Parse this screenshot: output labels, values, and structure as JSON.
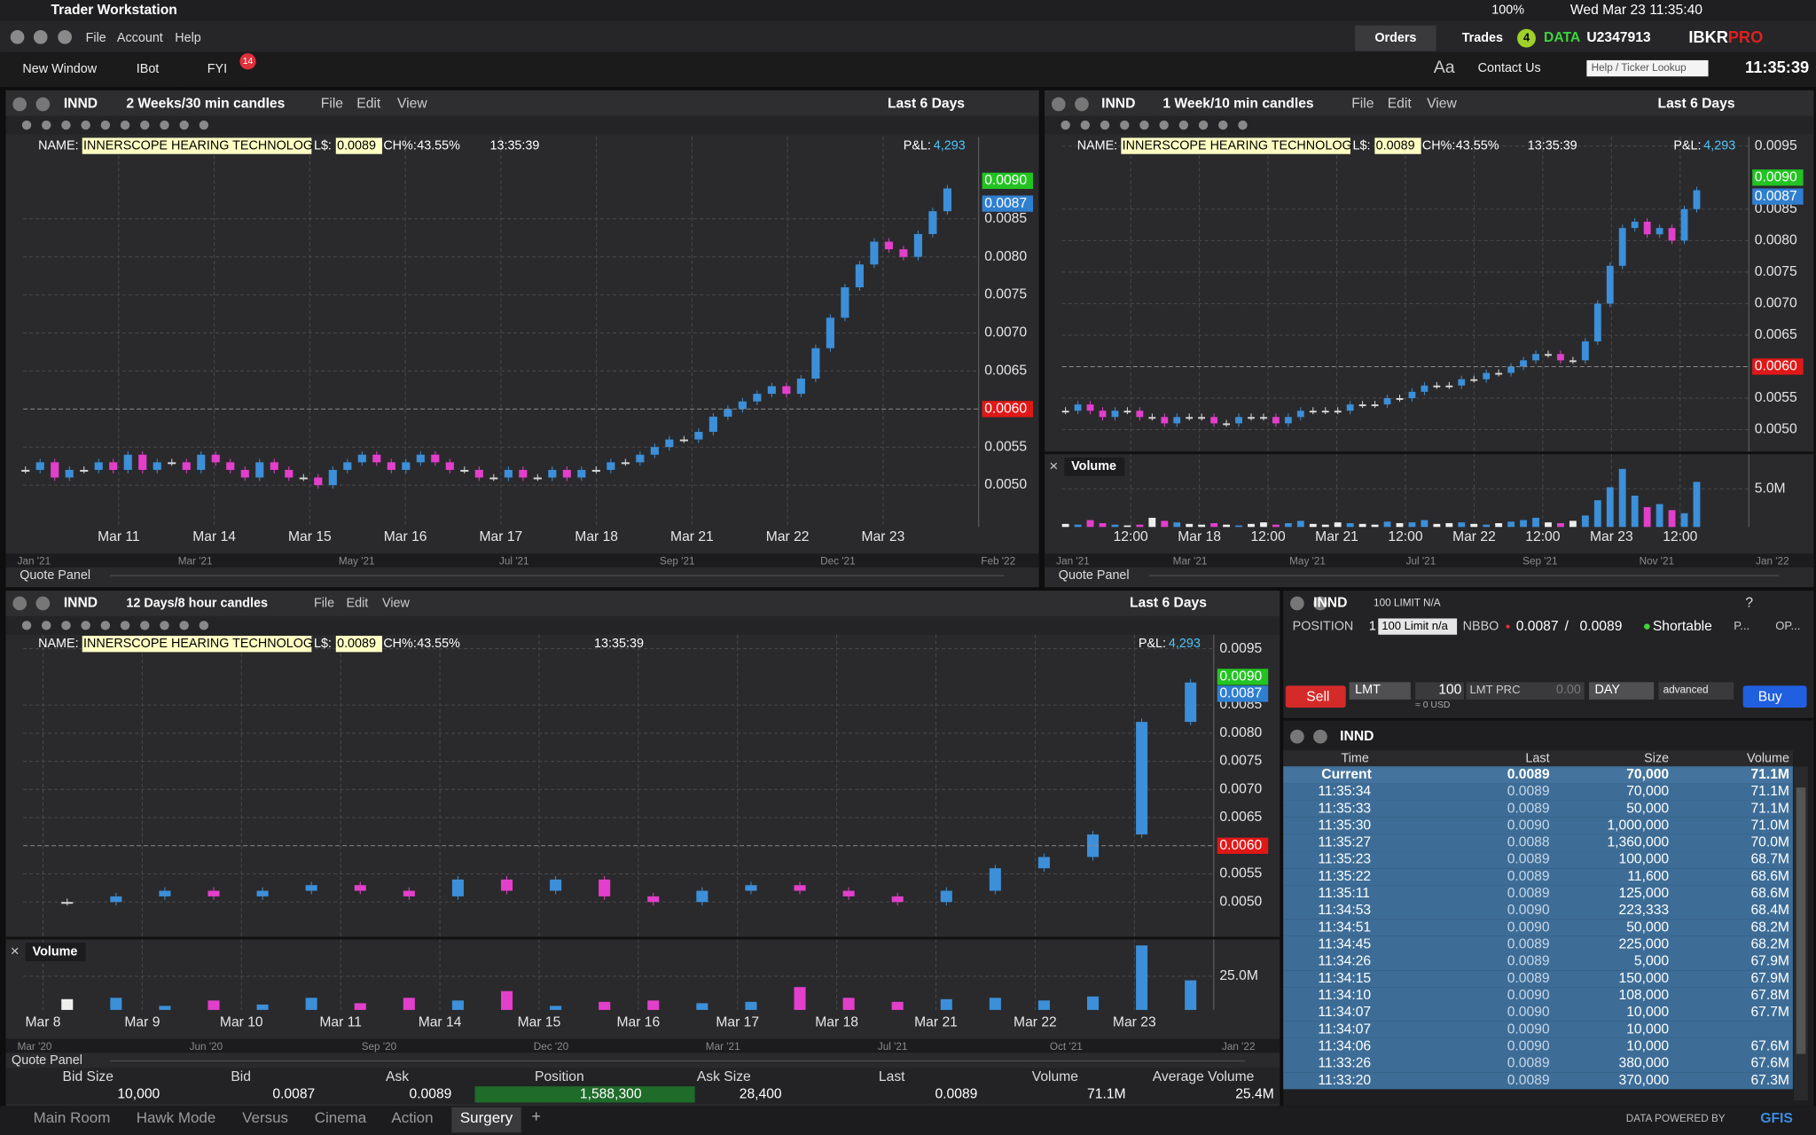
{
  "menubar": {
    "app": "Trader Workstation",
    "battery": "100%",
    "clock": "Wed Mar 23  11:35:40"
  },
  "toolbar": {
    "menus": [
      "File",
      "Account",
      "Help"
    ],
    "orders": "Orders",
    "trades": "Trades",
    "trades_count": "4",
    "data": "DATA",
    "account": "U2347913",
    "brand": "IBKR",
    "brand_pro": "PRO",
    "buttons": [
      "New Window",
      "IBot",
      "FYI"
    ],
    "fyi_count": "14",
    "font_size": "Aa",
    "contact": "Contact Us",
    "lookup": "Help / Ticker Lookup",
    "time": "11:35:39"
  },
  "charts": [
    {
      "symbol": "INND",
      "period": "2 Weeks/30 min candles",
      "menus": [
        "File",
        "Edit",
        "View"
      ],
      "range": "Last 6 Days",
      "name_label": "NAME:",
      "name": "INNERSCOPE HEARING TECHNOLOG",
      "last_label": "L$:",
      "last": "0.0089",
      "change_label": "CH%:",
      "change": "43.55%",
      "time": "13:35:39",
      "pnl_label": "P&L:",
      "pnl": "4,293",
      "ylim": [
        0.00445,
        0.00958
      ],
      "yticks": [
        {
          "value": 0.005,
          "label": "0.0050"
        },
        {
          "value": 0.0055,
          "label": "0.0055"
        },
        {
          "value": 0.0065,
          "label": "0.0065"
        },
        {
          "value": 0.007,
          "label": "0.0070"
        },
        {
          "value": 0.0075,
          "label": "0.0075"
        },
        {
          "value": 0.008,
          "label": "0.0080"
        },
        {
          "value": 0.0085,
          "label": "0.0085"
        }
      ],
      "price_tags": [
        {
          "value": 0.009,
          "label": "0.0090",
          "color": "#22c322"
        },
        {
          "value": 0.0087,
          "label": "0.0087",
          "color": "#2f7fd0"
        },
        {
          "value": 0.006,
          "label": "0.0060",
          "color": "#e01818"
        }
      ],
      "x_labels": [
        "Mar 11",
        "Mar 14",
        "Mar 15",
        "Mar 16",
        "Mar 17",
        "Mar 18",
        "Mar 21",
        "Mar 22",
        "Mar 23"
      ],
      "overview_labels": [
        "Jan '21",
        "Mar '21",
        "May '21",
        "Jul '21",
        "Sep '21",
        "Dec '21",
        "Feb '22"
      ],
      "closes": [
        0.0052,
        0.0053,
        0.0051,
        0.0052,
        0.0052,
        0.0053,
        0.0052,
        0.0054,
        0.0052,
        0.0053,
        0.0053,
        0.0052,
        0.0054,
        0.0053,
        0.0052,
        0.0051,
        0.0053,
        0.0052,
        0.0051,
        0.0051,
        0.005,
        0.0052,
        0.0053,
        0.0054,
        0.0053,
        0.0052,
        0.0053,
        0.0054,
        0.0053,
        0.0052,
        0.0052,
        0.0051,
        0.0051,
        0.0052,
        0.0051,
        0.0051,
        0.0052,
        0.0051,
        0.0052,
        0.0052,
        0.0053,
        0.0053,
        0.0054,
        0.0055,
        0.0056,
        0.0056,
        0.0057,
        0.0059,
        0.006,
        0.0061,
        0.0062,
        0.0063,
        0.0062,
        0.0064,
        0.0068,
        0.0072,
        0.0076,
        0.0079,
        0.0082,
        0.0081,
        0.008,
        0.0083,
        0.0086,
        0.0089
      ],
      "panel_label": "Quote Panel"
    },
    {
      "symbol": "INND",
      "period": "1 Week/10 min candles",
      "menus": [
        "File",
        "Edit",
        "View"
      ],
      "range": "Last 6 Days",
      "name_label": "NAME:",
      "name": "INNERSCOPE HEARING TECHNOLOG",
      "last_label": "L$:",
      "last": "0.0089",
      "change_label": "CH%:",
      "change": "43.55%",
      "time": "13:35:39",
      "pnl_label": "P&L:",
      "pnl": "4,293",
      "ylim": [
        0.00465,
        0.00965
      ],
      "yticks": [
        {
          "value": 0.005,
          "label": "0.0050"
        },
        {
          "value": 0.0055,
          "label": "0.0055"
        },
        {
          "value": 0.0065,
          "label": "0.0065"
        },
        {
          "value": 0.007,
          "label": "0.0070"
        },
        {
          "value": 0.0075,
          "label": "0.0075"
        },
        {
          "value": 0.008,
          "label": "0.0080"
        },
        {
          "value": 0.0085,
          "label": "0.0085"
        },
        {
          "value": 0.0095,
          "label": "0.0095"
        }
      ],
      "price_tags": [
        {
          "value": 0.009,
          "label": "0.0090",
          "color": "#22c322"
        },
        {
          "value": 0.0087,
          "label": "0.0087",
          "color": "#2f7fd0"
        },
        {
          "value": 0.006,
          "label": "0.0060",
          "color": "#e01818"
        }
      ],
      "x_labels": [
        "12:00",
        "Mar 18",
        "12:00",
        "Mar 21",
        "12:00",
        "Mar 22",
        "12:00",
        "Mar 23",
        "12:00"
      ],
      "overview_labels": [
        "Jan '21",
        "Mar '21",
        "May '21",
        "Jul '21",
        "Sep '21",
        "Nov '21",
        "Jan '22"
      ],
      "closes": [
        0.0053,
        0.0054,
        0.0053,
        0.0052,
        0.0053,
        0.0053,
        0.0052,
        0.0052,
        0.0051,
        0.0052,
        0.0052,
        0.0052,
        0.0051,
        0.0051,
        0.0052,
        0.0052,
        0.0052,
        0.0051,
        0.0052,
        0.0053,
        0.0053,
        0.0053,
        0.0053,
        0.0054,
        0.0054,
        0.0054,
        0.0055,
        0.0055,
        0.0056,
        0.0057,
        0.0057,
        0.0057,
        0.0058,
        0.0058,
        0.0059,
        0.0059,
        0.006,
        0.0061,
        0.0062,
        0.0062,
        0.0061,
        0.0061,
        0.0064,
        0.007,
        0.0076,
        0.0082,
        0.0083,
        0.0081,
        0.0082,
        0.008,
        0.0085,
        0.0088
      ],
      "volume_label": "Volume",
      "vlim": [
        0,
        9400000
      ],
      "vticks": [
        {
          "value": 5000000,
          "label": "5.0M"
        }
      ],
      "volume": [
        400000,
        300000,
        900000,
        500000,
        300000,
        200000,
        300000,
        1200000,
        800000,
        600000,
        400000,
        300000,
        500000,
        300000,
        200000,
        400000,
        600000,
        300000,
        500000,
        800000,
        400000,
        300000,
        600000,
        500000,
        400000,
        300000,
        700000,
        500000,
        600000,
        900000,
        400000,
        500000,
        600000,
        400000,
        300000,
        500000,
        700000,
        900000,
        1200000,
        600000,
        500000,
        800000,
        1500000,
        3500000,
        5200000,
        7600000,
        4100000,
        2600000,
        3000000,
        2200000,
        1800000,
        5900000
      ],
      "panel_label": "Quote Panel"
    },
    {
      "symbol": "INND",
      "period": "12 Days/8 hour candles",
      "menus": [
        "File",
        "Edit",
        "View"
      ],
      "range": "Last 6 Days",
      "name_label": "NAME:",
      "name": "INNERSCOPE HEARING TECHNOLOG",
      "last_label": "L$:",
      "last": "0.0089",
      "change_label": "CH%:",
      "change": "43.55%",
      "time": "13:35:39",
      "pnl_label": "P&L:",
      "pnl": "4,293",
      "ylim": [
        0.0044,
        0.00975
      ],
      "yticks": [
        {
          "value": 0.005,
          "label": "0.0050"
        },
        {
          "value": 0.0055,
          "label": "0.0055"
        },
        {
          "value": 0.0065,
          "label": "0.0065"
        },
        {
          "value": 0.007,
          "label": "0.0070"
        },
        {
          "value": 0.0075,
          "label": "0.0075"
        },
        {
          "value": 0.008,
          "label": "0.0080"
        },
        {
          "value": 0.0085,
          "label": "0.0085"
        },
        {
          "value": 0.0095,
          "label": "0.0095"
        }
      ],
      "price_tags": [
        {
          "value": 0.009,
          "label": "0.0090",
          "color": "#22c322"
        },
        {
          "value": 0.0087,
          "label": "0.0087",
          "color": "#2f7fd0"
        },
        {
          "value": 0.006,
          "label": "0.0060",
          "color": "#e01818"
        }
      ],
      "x_labels": [
        "Mar 8",
        "Mar 9",
        "Mar 10",
        "Mar 11",
        "Mar 14",
        "Mar 15",
        "Mar 16",
        "Mar 17",
        "Mar 18",
        "Mar 21",
        "Mar 22",
        "Mar 23"
      ],
      "overview_labels": [
        "Mar '20",
        "Jun '20",
        "Sep '20",
        "Dec '20",
        "Mar '21",
        "Jul '21",
        "Oct '21",
        "Jan '22"
      ],
      "closes": [
        0.005,
        0.0051,
        0.0052,
        0.0051,
        0.0052,
        0.0053,
        0.0052,
        0.0051,
        0.0054,
        0.0052,
        0.0054,
        0.0051,
        0.005,
        0.0052,
        0.0053,
        0.0052,
        0.0051,
        0.005,
        0.0052,
        0.0056,
        0.0058,
        0.0062,
        0.0082,
        0.0089
      ],
      "volume_label": "Volume",
      "vlim": [
        0,
        51700000
      ],
      "vticks": [
        {
          "value": 25000000,
          "label": "25.0M"
        }
      ],
      "volume": [
        8000000,
        9000000,
        3000000,
        7000000,
        4000000,
        9000000,
        5000000,
        9000000,
        7000000,
        14000000,
        3000000,
        6000000,
        7000000,
        5000000,
        6000000,
        17000000,
        9000000,
        6000000,
        8000000,
        9000000,
        7000000,
        10000000,
        48000000,
        22000000
      ]
    }
  ],
  "order_entry": {
    "symbol": "INND",
    "order": "100 LIMIT N/A",
    "help": "?",
    "position_label": "POSITION",
    "position": "1",
    "order_box": "100 Limit n/a",
    "nbbo_label": "NBBO",
    "bid": "0.0087",
    "sep": "/",
    "ask": "0.0089",
    "shortable": "Shortable",
    "p": "P...",
    "op": "OP...",
    "sell": "Sell",
    "type": "LMT",
    "qty": "100",
    "price_label": "LMT PRC",
    "price": "0.00",
    "tif": "DAY",
    "advanced": "advanced",
    "buy": "Buy",
    "usd": "≈ 0 USD"
  },
  "time_and_sales": {
    "symbol": "INND",
    "columns": [
      "Time",
      "Last",
      "Size",
      "Volume"
    ],
    "rows": [
      [
        "Current",
        "0.0089",
        "70,000",
        "71.1M"
      ],
      [
        "11:35:34",
        "0.0089",
        "70,000",
        "71.1M"
      ],
      [
        "11:35:33",
        "0.0089",
        "50,000",
        "71.1M"
      ],
      [
        "11:35:30",
        "0.0090",
        "1,000,000",
        "71.0M"
      ],
      [
        "11:35:27",
        "0.0088",
        "1,360,000",
        "70.0M"
      ],
      [
        "11:35:23",
        "0.0089",
        "100,000",
        "68.7M"
      ],
      [
        "11:35:22",
        "0.0089",
        "11,600",
        "68.6M"
      ],
      [
        "11:35:11",
        "0.0089",
        "125,000",
        "68.6M"
      ],
      [
        "11:34:53",
        "0.0090",
        "223,333",
        "68.4M"
      ],
      [
        "11:34:51",
        "0.0090",
        "50,000",
        "68.2M"
      ],
      [
        "11:34:45",
        "0.0089",
        "225,000",
        "68.2M"
      ],
      [
        "11:34:26",
        "0.0089",
        "5,000",
        "67.9M"
      ],
      [
        "11:34:15",
        "0.0089",
        "150,000",
        "67.9M"
      ],
      [
        "11:34:10",
        "0.0090",
        "108,000",
        "67.8M"
      ],
      [
        "11:34:07",
        "0.0090",
        "10,000",
        "67.7M"
      ],
      [
        "11:34:07",
        "0.0090",
        "10,000",
        null
      ],
      [
        "11:34:06",
        "0.0090",
        "10,000",
        "67.6M"
      ],
      [
        "11:33:26",
        "0.0089",
        "380,000",
        "67.6M"
      ],
      [
        "11:33:20",
        "0.0089",
        "370,000",
        "67.3M"
      ]
    ]
  },
  "quote_panel": {
    "title": "Quote Panel",
    "columns": [
      "Bid Size",
      "Bid",
      "Ask",
      "Position",
      "Ask Size",
      "Last",
      "Volume",
      "Average Volume"
    ],
    "values": [
      "10,000",
      "0.0087",
      "0.0089",
      "1,588,300",
      "28,400",
      "0.0089",
      "71.1M",
      "25.4M"
    ]
  },
  "tabs": [
    "Main Room",
    "Hawk Mode",
    "Versus",
    "Cinema",
    "Action",
    "Surgery"
  ],
  "active_tab": 5,
  "new_tab": "+",
  "footer": {
    "text": "DATA POWERED BY",
    "brand": "GFIS"
  }
}
